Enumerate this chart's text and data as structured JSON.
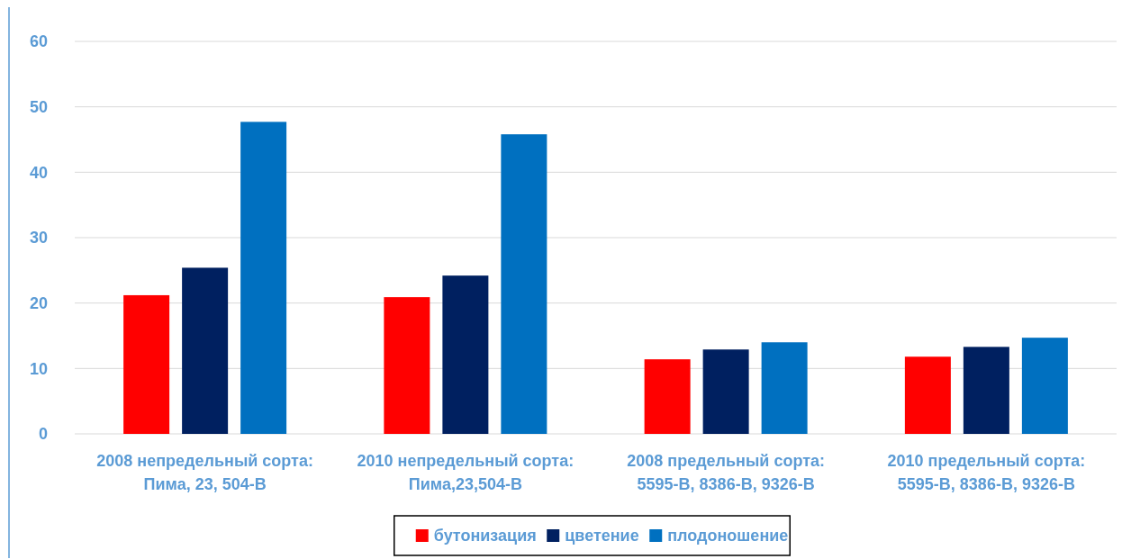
{
  "chart_data": {
    "type": "bar",
    "categories": [
      "2008 непредельный сорта: Пима, 23, 504-В",
      "2010 непредельный сорта: Пима,23,504-В",
      "2008 предельный сорта: 5595-В, 8386-В, 9326-В",
      "2010 предельный сорта: 5595-В, 8386-В, 9326-В"
    ],
    "series": [
      {
        "name": "бутонизация",
        "color": "#ff0000",
        "values": [
          21.2,
          20.9,
          11.4,
          11.8
        ]
      },
      {
        "name": "цветение",
        "color": "#002060",
        "values": [
          25.4,
          24.2,
          12.9,
          13.3
        ]
      },
      {
        "name": "плодоношение",
        "color": "#0070c0",
        "values": [
          47.7,
          45.8,
          14.0,
          14.7
        ]
      }
    ],
    "ylim": [
      0,
      60
    ],
    "yticks": [
      0,
      10,
      20,
      30,
      40,
      50,
      60
    ],
    "grid": "y",
    "legend": "bottom"
  }
}
